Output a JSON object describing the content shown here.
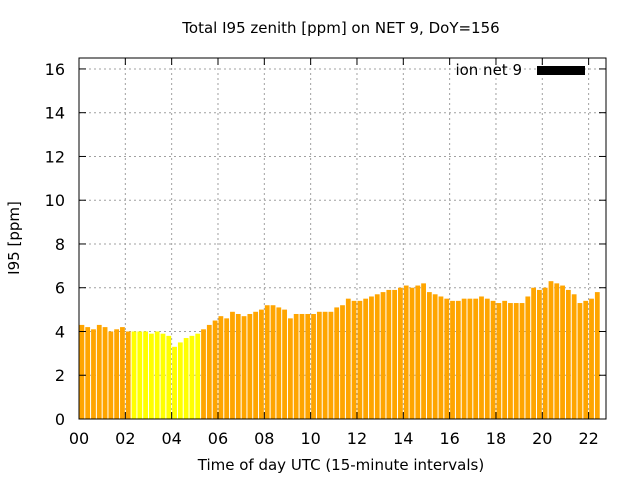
{
  "chart_data": {
    "type": "bar",
    "title": "Total I95 zenith [ppm] on NET 9, DoY=156",
    "xlabel": "Time of day UTC (15-minute intervals)",
    "ylabel": "I95 [ppm]",
    "ylim": [
      0,
      16.5
    ],
    "xlim": [
      0,
      22.75
    ],
    "yticks": [
      "0",
      "2",
      "4",
      "6",
      "8",
      "10",
      "12",
      "14",
      "16"
    ],
    "xticks": [
      "00",
      "02",
      "04",
      "06",
      "08",
      "10",
      "12",
      "14",
      "16",
      "18",
      "20",
      "22"
    ],
    "grid": true,
    "legend_position": "top-right",
    "series": [
      {
        "name": "ion net 9",
        "legend_color": "#000000",
        "bar_color": "#ffa500",
        "highlight_color": "#ffff00",
        "interval_hours": 0.25,
        "highlight_range": [
          9,
          21
        ],
        "values": [
          4.3,
          4.2,
          4.1,
          4.3,
          4.2,
          4.0,
          4.1,
          4.2,
          4.0,
          4.0,
          4.0,
          4.0,
          3.9,
          4.0,
          3.9,
          3.8,
          3.3,
          3.5,
          3.7,
          3.8,
          3.9,
          4.1,
          4.3,
          4.5,
          4.7,
          4.6,
          4.9,
          4.8,
          4.7,
          4.8,
          4.9,
          5.0,
          5.2,
          5.2,
          5.1,
          5.0,
          4.6,
          4.8,
          4.8,
          4.8,
          4.8,
          4.9,
          4.9,
          4.9,
          5.1,
          5.2,
          5.5,
          5.4,
          5.4,
          5.5,
          5.6,
          5.7,
          5.8,
          5.9,
          5.9,
          6.0,
          6.1,
          6.0,
          6.1,
          6.2,
          5.8,
          5.7,
          5.6,
          5.5,
          5.4,
          5.4,
          5.5,
          5.5,
          5.5,
          5.6,
          5.5,
          5.4,
          5.3,
          5.4,
          5.3,
          5.3,
          5.3,
          5.6,
          6.0,
          5.9,
          6.0,
          6.3,
          6.2,
          6.1,
          5.9,
          5.7,
          5.3,
          5.4,
          5.5,
          5.8
        ]
      }
    ]
  }
}
